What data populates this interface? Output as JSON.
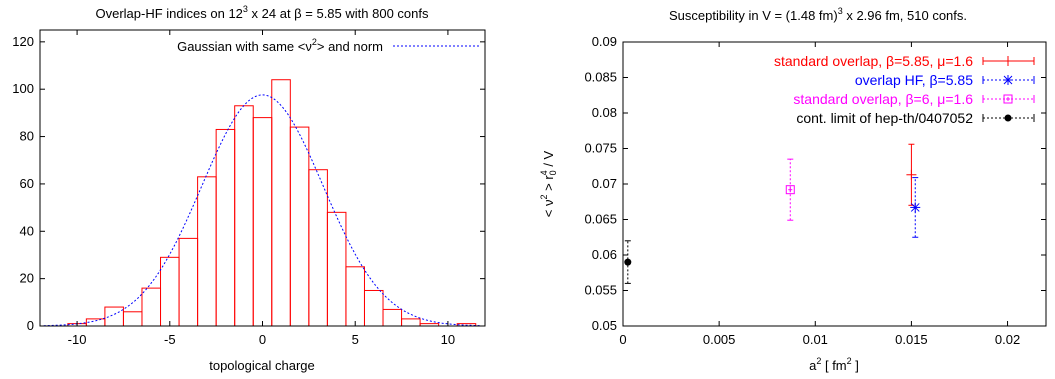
{
  "chart_data": [
    {
      "type": "bar",
      "title_parts": [
        "Overlap-HF  indices  on  12",
        "3",
        " x 24  at  β = 5.85  with  800  confs"
      ],
      "xlabel": "topological charge",
      "ylabel": "",
      "xlim": [
        -12,
        12
      ],
      "ylim": [
        0,
        125
      ],
      "xticks": [
        "-10",
        "-5",
        "0",
        "5",
        "10"
      ],
      "yticks": [
        "0",
        "20",
        "40",
        "60",
        "80",
        "100",
        "120"
      ],
      "grid": false,
      "legend_position": "top-right",
      "legend_parts": [
        "Gaussian with same <ν",
        "2",
        "> and norm"
      ],
      "categories": [
        -11,
        -10,
        -9,
        -8,
        -7,
        -6,
        -5,
        -4,
        -3,
        -2,
        -1,
        0,
        1,
        2,
        3,
        4,
        5,
        6,
        7,
        8,
        9,
        10,
        11
      ],
      "values": [
        0,
        1,
        3,
        8,
        6,
        16,
        29,
        37,
        63,
        83,
        93,
        88,
        104,
        84,
        66,
        48,
        25,
        15,
        7,
        3,
        1,
        0,
        1
      ],
      "gaussian": {
        "mean": 0,
        "peak": 97.6,
        "sigma": 3.27
      },
      "colors": {
        "bars": "#ff0000",
        "curve": "#0000ff"
      }
    },
    {
      "type": "scatter",
      "title_parts": [
        "Susceptibility in V = (1.48 fm)",
        "3",
        " x 2.96 fm, 510 confs."
      ],
      "xlabel_parts": [
        "a",
        "2",
        "  [ fm",
        "2",
        " ]"
      ],
      "ylabel_parts": [
        "< ν",
        "2",
        " >   r",
        "0",
        "4",
        "  /  V"
      ],
      "xlim": [
        0,
        0.022
      ],
      "ylim": [
        0.05,
        0.09
      ],
      "xticks": [
        "0",
        "0.005",
        "0.01",
        "0.015",
        "0.02"
      ],
      "yticks": [
        "0.05",
        "0.055",
        "0.06",
        "0.065",
        "0.07",
        "0.075",
        "0.08",
        "0.085",
        "0.09"
      ],
      "grid": false,
      "legend_position": "top-right",
      "series": [
        {
          "name": "standard overlap, β=5.85, μ=1.6",
          "color": "#ff0000",
          "marker": "plus",
          "points": [
            {
              "x": 0.015,
              "y": 0.0713,
              "err": 0.0043
            }
          ]
        },
        {
          "name": "overlap HF, β=5.85",
          "color": "#0000ff",
          "marker": "star",
          "points": [
            {
              "x": 0.0152,
              "y": 0.0667,
              "err": 0.0042
            }
          ]
        },
        {
          "name": "standard overlap, β=6, μ=1.6",
          "color": "#ff00ff",
          "marker": "box",
          "points": [
            {
              "x": 0.0087,
              "y": 0.0692,
              "err": 0.0043
            }
          ]
        },
        {
          "name": "cont. limit of hep-th/0407052",
          "color": "#000000",
          "marker": "dot",
          "points": [
            {
              "x": 0.00025,
              "y": 0.059,
              "err": 0.003
            }
          ]
        }
      ]
    }
  ]
}
